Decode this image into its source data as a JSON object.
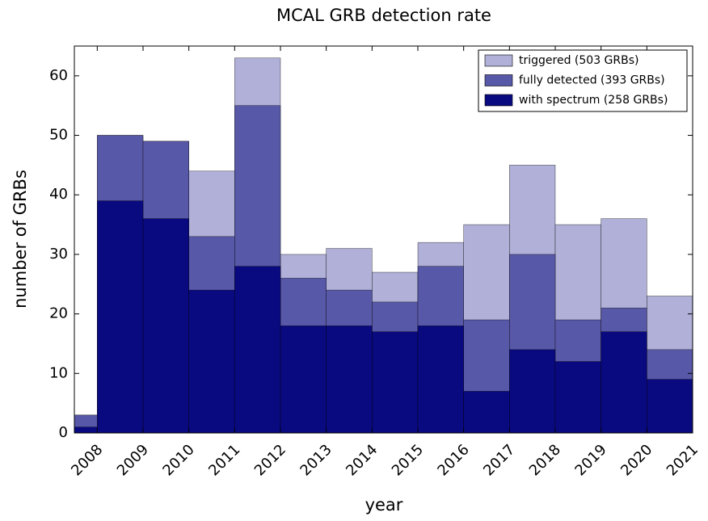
{
  "chart_data": {
    "type": "histogram",
    "title": "MCAL GRB detection rate",
    "x_label": "year",
    "y_label": "number of GRBs",
    "bins": [
      2007.5,
      2008,
      2009,
      2010,
      2011,
      2012,
      2013,
      2014,
      2015,
      2016,
      2017,
      2018,
      2019,
      2020,
      2021
    ],
    "series": [
      {
        "name": "triggered (503 GRBs)",
        "color": "#b0b0d8",
        "values": [
          3,
          50,
          49,
          44,
          63,
          30,
          31,
          27,
          32,
          35,
          45,
          35,
          36,
          23
        ]
      },
      {
        "name": "fully detected (393 GRBs)",
        "color": "#5858a8",
        "values": [
          3,
          50,
          49,
          33,
          55,
          26,
          24,
          22,
          28,
          19,
          30,
          19,
          21,
          14
        ]
      },
      {
        "name": "with spectrum (258 GRBs)",
        "color": "#0a0a80",
        "values": [
          1,
          39,
          36,
          24,
          28,
          18,
          18,
          17,
          18,
          7,
          14,
          12,
          17,
          9
        ]
      }
    ],
    "xlim": [
      2007.5,
      2021
    ],
    "ylim": [
      0,
      65
    ],
    "xticks": [
      2008,
      2009,
      2010,
      2011,
      2012,
      2013,
      2014,
      2015,
      2016,
      2017,
      2018,
      2019,
      2020,
      2021
    ],
    "yticks": [
      0,
      10,
      20,
      30,
      40,
      50,
      60
    ],
    "legend": "upper right"
  }
}
